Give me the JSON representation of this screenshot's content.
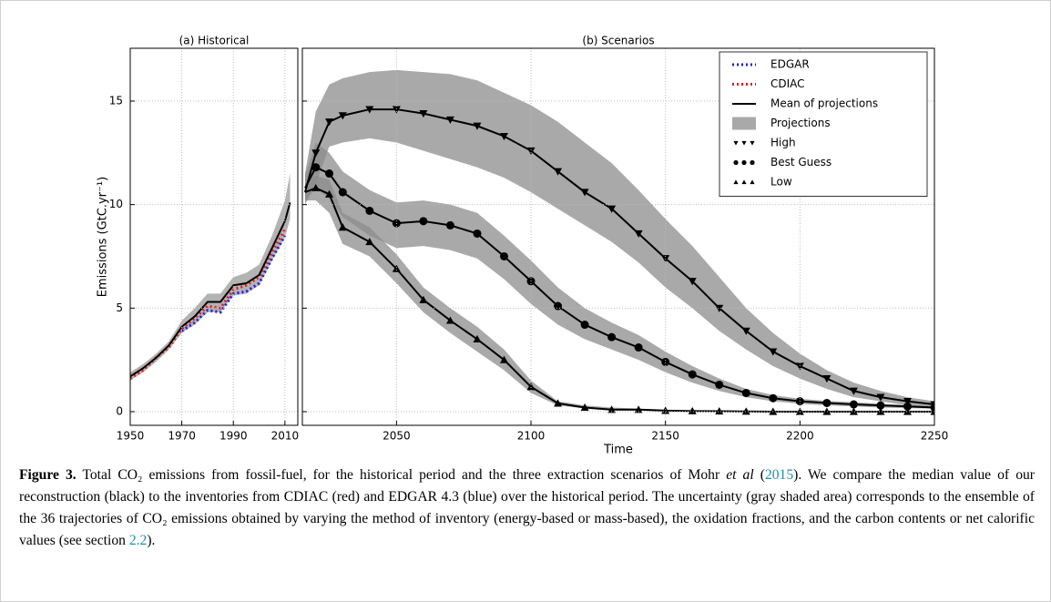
{
  "chart_data": [
    {
      "type": "line",
      "title": "(a) Historical",
      "ylabel": "Emissions (GtC.yr⁻¹)",
      "x": [
        1950,
        1955,
        1960,
        1965,
        1970,
        1975,
        1980,
        1985,
        1990,
        1995,
        2000,
        2005,
        2010,
        2012
      ],
      "xlim": [
        1950,
        2015
      ],
      "xticks": [
        1950,
        1970,
        1990,
        2010
      ],
      "ylim": [
        -0.66,
        17.55
      ],
      "yticks": [
        0,
        5,
        10,
        15
      ],
      "grid": true,
      "series": [
        {
          "name": "EDGAR",
          "color": "#1f1fe0",
          "style": "dotted",
          "values": [
            null,
            null,
            null,
            null,
            3.9,
            4.3,
            4.9,
            4.8,
            5.7,
            5.8,
            6.2,
            7.4,
            8.5,
            null
          ]
        },
        {
          "name": "CDIAC",
          "color": "#e01f1f",
          "style": "dotted",
          "values": [
            1.6,
            2.0,
            2.6,
            3.1,
            4.0,
            4.5,
            5.1,
            5.0,
            5.9,
            6.1,
            6.5,
            7.7,
            8.8,
            null
          ]
        },
        {
          "name": "Mean of projections",
          "color": "#000000",
          "style": "solid",
          "values": [
            1.7,
            2.1,
            2.6,
            3.2,
            4.1,
            4.6,
            5.3,
            5.3,
            6.1,
            6.2,
            6.6,
            7.9,
            9.2,
            10.1
          ],
          "band_low": [
            1.5,
            1.9,
            2.4,
            3.0,
            3.8,
            4.2,
            4.8,
            4.8,
            5.6,
            5.7,
            6.1,
            7.3,
            8.4,
            9.3
          ],
          "band_high": [
            1.9,
            2.3,
            2.8,
            3.4,
            4.4,
            5.0,
            5.7,
            5.7,
            6.5,
            6.7,
            7.1,
            8.5,
            10.2,
            11.5
          ]
        }
      ]
    },
    {
      "type": "line",
      "title": "(b) Scenarios",
      "xlabel": "Time",
      "band_name": "Projections",
      "band_color": "#8c8c8c",
      "x": [
        2016,
        2020,
        2025,
        2030,
        2040,
        2050,
        2060,
        2070,
        2080,
        2090,
        2100,
        2110,
        2120,
        2130,
        2140,
        2150,
        2160,
        2170,
        2180,
        2190,
        2200,
        2210,
        2220,
        2230,
        2240,
        2250
      ],
      "xlim": [
        2015,
        2250
      ],
      "xticks": [
        2050,
        2100,
        2150,
        2200,
        2250
      ],
      "ylim": [
        -0.66,
        17.55
      ],
      "yticks": [
        0,
        5,
        10,
        15
      ],
      "grid": true,
      "legend": "upper right",
      "series": [
        {
          "name": "High",
          "color": "#000000",
          "marker": "triangle-down",
          "values": [
            10.6,
            12.5,
            14.0,
            14.3,
            14.6,
            14.6,
            14.4,
            14.1,
            13.8,
            13.3,
            12.6,
            11.6,
            10.6,
            9.8,
            8.6,
            7.4,
            6.3,
            5.0,
            3.9,
            2.9,
            2.2,
            1.6,
            1.0,
            0.7,
            0.5,
            0.35
          ],
          "band_low": [
            10.0,
            11.0,
            12.8,
            13.0,
            13.2,
            13.0,
            12.6,
            12.2,
            11.8,
            11.3,
            10.6,
            9.8,
            9.0,
            8.2,
            7.2,
            6.0,
            5.0,
            3.9,
            3.0,
            2.2,
            1.6,
            1.1,
            0.7,
            0.5,
            0.3,
            0.2
          ],
          "band_high": [
            11.5,
            14.5,
            15.8,
            16.1,
            16.4,
            16.5,
            16.4,
            16.3,
            16.0,
            15.4,
            14.8,
            14.0,
            13.0,
            12.0,
            10.7,
            9.3,
            8.0,
            6.5,
            5.0,
            3.8,
            2.8,
            2.0,
            1.4,
            1.0,
            0.7,
            0.5
          ]
        },
        {
          "name": "Best Guess",
          "color": "#000000",
          "marker": "circle",
          "values": [
            10.8,
            11.8,
            11.5,
            10.6,
            9.7,
            9.1,
            9.2,
            9.0,
            8.6,
            7.5,
            6.3,
            5.1,
            4.2,
            3.6,
            3.1,
            2.4,
            1.8,
            1.3,
            0.9,
            0.65,
            0.5,
            0.42,
            0.35,
            0.3,
            0.25,
            0.2
          ],
          "band_low": [
            10.2,
            10.8,
            10.3,
            9.4,
            8.5,
            7.9,
            8.0,
            7.8,
            7.4,
            6.4,
            5.2,
            4.2,
            3.5,
            3.0,
            2.5,
            1.9,
            1.4,
            1.0,
            0.7,
            0.5,
            0.38,
            0.3,
            0.25,
            0.2,
            0.17,
            0.15
          ],
          "band_high": [
            11.4,
            13.0,
            12.5,
            11.6,
            10.7,
            10.1,
            10.2,
            10.0,
            9.6,
            8.5,
            7.3,
            6.0,
            5.0,
            4.3,
            3.7,
            2.9,
            2.2,
            1.6,
            1.1,
            0.8,
            0.62,
            0.52,
            0.45,
            0.38,
            0.32,
            0.26
          ]
        },
        {
          "name": "Low",
          "color": "#000000",
          "marker": "triangle-up",
          "values": [
            10.6,
            10.8,
            10.5,
            8.9,
            8.2,
            6.9,
            5.4,
            4.4,
            3.5,
            2.5,
            1.2,
            0.4,
            0.2,
            0.1,
            0.1,
            0.05,
            0.03,
            0.02,
            0.01,
            0,
            0,
            0,
            0,
            0,
            0,
            0
          ],
          "band_low": [
            10.2,
            10.2,
            9.6,
            8.1,
            7.5,
            6.2,
            4.8,
            3.8,
            2.9,
            2.0,
            0.9,
            0.3,
            0.15,
            0.05,
            0.05,
            0.02,
            0.01,
            0,
            0,
            0,
            0,
            0,
            0,
            0,
            0,
            0
          ],
          "band_high": [
            11.0,
            11.4,
            11.2,
            9.6,
            8.9,
            7.6,
            6.0,
            5.0,
            4.1,
            3.0,
            1.5,
            0.5,
            0.3,
            0.2,
            0.15,
            0.1,
            0.06,
            0.04,
            0.02,
            0.01,
            0.01,
            0,
            0,
            0,
            0,
            0
          ]
        }
      ]
    }
  ],
  "caption": {
    "label": "Figure 3.",
    "parts": [
      "Total CO₂ emissions from fossil-fuel, for the historical period and the three extraction scenarios of Mohr ",
      "et al",
      " (",
      "2015",
      "). We compare the median value of our reconstruction (black) to the inventories from CDIAC (red) and EDGAR 4.3 (blue) over the historical period. The uncertainty (gray shaded area) corresponds to the ensemble of the 36 trajectories of CO₂ emissions obtained by varying the method of inventory (energy-based or mass-based), the oxidation fractions, and the carbon contents or net calorific values (see section ",
      "2.2",
      ")."
    ]
  }
}
